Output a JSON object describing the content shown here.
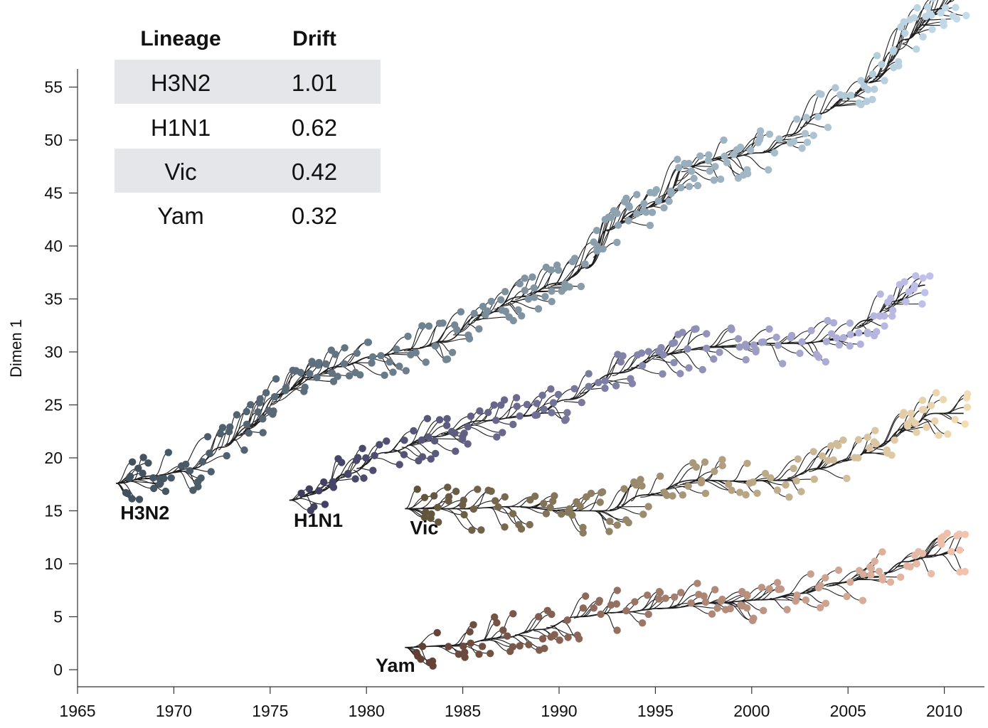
{
  "chart_data": {
    "type": "scatter",
    "title": "",
    "xlabel": "",
    "ylabel": "Dimen 1",
    "xlim": [
      1965,
      2012
    ],
    "ylim": [
      -1.5,
      57
    ],
    "x_ticks": [
      "1965",
      "1970",
      "1975",
      "1980",
      "1985",
      "1990",
      "1995",
      "2000",
      "2005",
      "2010"
    ],
    "y_ticks": [
      "0",
      "5",
      "10",
      "15",
      "20",
      "25",
      "30",
      "35",
      "40",
      "45",
      "50",
      "55"
    ],
    "legend": {
      "headers": [
        "Lineage",
        "Drift"
      ],
      "rows": [
        {
          "lineage": "H3N2",
          "drift": "1.01"
        },
        {
          "lineage": "H1N1",
          "drift": "0.62"
        },
        {
          "lineage": "Vic",
          "drift": "0.42"
        },
        {
          "lineage": "Yam",
          "drift": "0.32"
        }
      ]
    },
    "series": [
      {
        "name": "H3N2",
        "color_start": "#3f4f5c",
        "color_end": "#c4dcea",
        "root": [
          1967.0,
          17.6
        ],
        "label_pos": [
          1968.5,
          14.2
        ],
        "trunk": [
          [
            1967.0,
            17.6
          ],
          [
            1969.0,
            18.3
          ],
          [
            1971.0,
            19.0
          ],
          [
            1972.5,
            21.0
          ],
          [
            1974.0,
            23.0
          ],
          [
            1975.5,
            26.0
          ],
          [
            1977.0,
            27.6
          ],
          [
            1978.5,
            28.6
          ],
          [
            1980.5,
            29.6
          ],
          [
            1982.5,
            30.3
          ],
          [
            1984.0,
            31.0
          ],
          [
            1986.0,
            33.5
          ],
          [
            1988.0,
            35.2
          ],
          [
            1990.0,
            36.5
          ],
          [
            1991.5,
            38.0
          ],
          [
            1992.5,
            41.5
          ],
          [
            1994.0,
            43.3
          ],
          [
            1995.5,
            44.3
          ],
          [
            1996.5,
            47.5
          ],
          [
            1998.5,
            48.3
          ],
          [
            2000.5,
            48.8
          ],
          [
            2002.0,
            50.5
          ],
          [
            2003.5,
            52.5
          ],
          [
            2005.0,
            54.0
          ],
          [
            2006.5,
            56.0
          ],
          [
            2008.0,
            59.5
          ],
          [
            2009.5,
            62.3
          ],
          [
            2011.0,
            63.8
          ]
        ]
      },
      {
        "name": "H1N1",
        "color_start": "#3d3b5c",
        "color_end": "#c0c0ea",
        "root": [
          1976.0,
          16.0
        ],
        "label_pos": [
          1977.5,
          13.5
        ],
        "trunk": [
          [
            1976.0,
            16.0
          ],
          [
            1977.5,
            16.8
          ],
          [
            1979.0,
            18.5
          ],
          [
            1981.0,
            20.5
          ],
          [
            1983.5,
            22.0
          ],
          [
            1986.0,
            23.5
          ],
          [
            1988.5,
            24.0
          ],
          [
            1990.5,
            25.5
          ],
          [
            1993.0,
            28.0
          ],
          [
            1995.5,
            29.8
          ],
          [
            1998.0,
            30.5
          ],
          [
            2000.5,
            30.8
          ],
          [
            2002.5,
            30.8
          ],
          [
            2004.5,
            31.2
          ],
          [
            2006.0,
            33.0
          ],
          [
            2007.5,
            34.8
          ],
          [
            2009.0,
            36.3
          ]
        ]
      },
      {
        "name": "Vic",
        "color_start": "#5c5038",
        "color_end": "#f2dcb6",
        "root": [
          1982.0,
          15.2
        ],
        "label_pos": [
          1983.0,
          12.8
        ],
        "trunk": [
          [
            1982.0,
            15.2
          ],
          [
            1985.0,
            15.2
          ],
          [
            1987.5,
            15.4
          ],
          [
            1990.5,
            15.0
          ],
          [
            1992.5,
            15.0
          ],
          [
            1994.5,
            16.5
          ],
          [
            1997.0,
            17.9
          ],
          [
            1999.5,
            17.8
          ],
          [
            2001.5,
            17.9
          ],
          [
            2003.5,
            19.0
          ],
          [
            2005.0,
            19.8
          ],
          [
            2006.5,
            21.0
          ],
          [
            2008.0,
            22.8
          ],
          [
            2009.5,
            24.2
          ],
          [
            2011.0,
            24.2
          ]
        ]
      },
      {
        "name": "Yam",
        "color_start": "#5c3d30",
        "color_end": "#f2c4b0",
        "root": [
          1982.0,
          2.1
        ],
        "label_pos": [
          1981.5,
          -0.2
        ],
        "trunk": [
          [
            1982.0,
            2.1
          ],
          [
            1984.5,
            2.3
          ],
          [
            1987.0,
            3.0
          ],
          [
            1989.0,
            3.8
          ],
          [
            1991.0,
            5.0
          ],
          [
            1993.0,
            5.4
          ],
          [
            1995.5,
            5.8
          ],
          [
            1998.0,
            6.3
          ],
          [
            2000.5,
            6.6
          ],
          [
            2002.5,
            7.2
          ],
          [
            2004.5,
            8.2
          ],
          [
            2006.5,
            8.8
          ],
          [
            2008.0,
            10.2
          ],
          [
            2009.5,
            10.8
          ],
          [
            2011.0,
            11.3
          ]
        ]
      }
    ]
  }
}
